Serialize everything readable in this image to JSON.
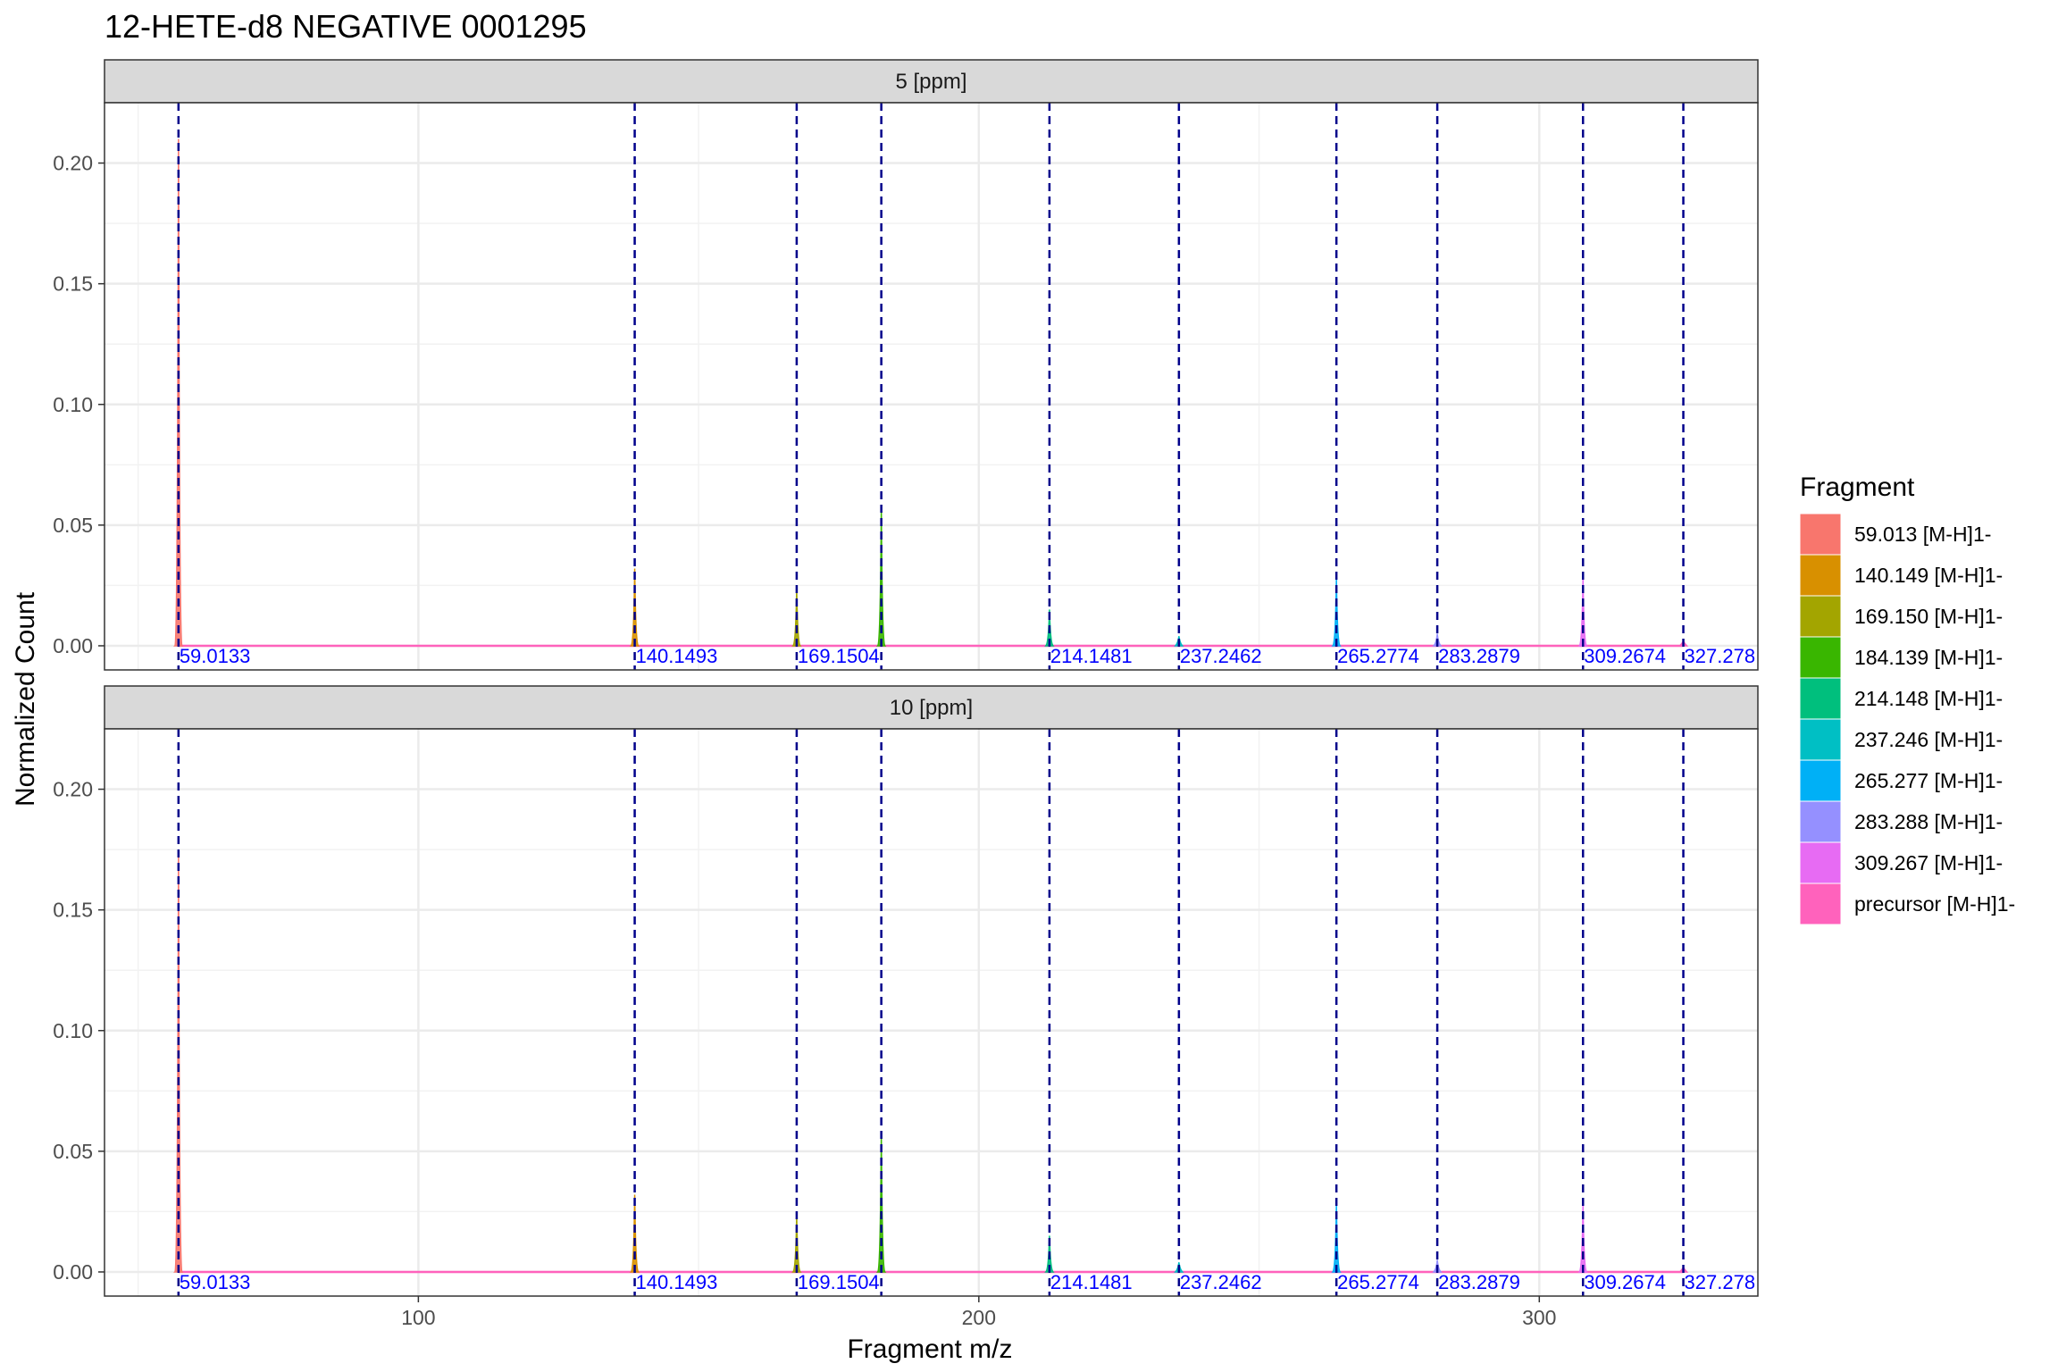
{
  "chart_data": {
    "type": "line",
    "title": "12-HETE-d8 NEGATIVE 0001295",
    "xlabel": "Fragment m/z",
    "ylabel": "Normalized Count",
    "xlim": [
      44,
      339
    ],
    "ylim": [
      -0.01,
      0.225
    ],
    "x_ticks": [
      100,
      200,
      300
    ],
    "x_tick_labels": [
      "100",
      "200",
      "300"
    ],
    "y_ticks": [
      0,
      0.05,
      0.1,
      0.15,
      0.2
    ],
    "y_tick_labels": [
      "0.00",
      "0.05",
      "0.10",
      "0.15",
      "0.20"
    ],
    "grid": true,
    "legend_title": "Fragment",
    "legend_position": "right",
    "panels": [
      {
        "strip": "5 [ppm]",
        "peaks": [
          {
            "fragment": "59.013 [M-H]1-",
            "mz": 57.2,
            "height": 0.21
          },
          {
            "fragment": "140.149 [M-H]1-",
            "mz": 138.6,
            "height": 0.032
          },
          {
            "fragment": "169.150 [M-H]1-",
            "mz": 167.5,
            "height": 0.024
          },
          {
            "fragment": "184.139 [M-H]1-",
            "mz": 182.6,
            "height": 0.057
          },
          {
            "fragment": "214.148 [M-H]1-",
            "mz": 212.6,
            "height": 0.015
          },
          {
            "fragment": "237.246 [M-H]1-",
            "mz": 235.7,
            "height": 0.004
          },
          {
            "fragment": "265.277 [M-H]1-",
            "mz": 263.8,
            "height": 0.028
          },
          {
            "fragment": "283.288 [M-H]1-",
            "mz": 281.8,
            "height": 0.005
          },
          {
            "fragment": "309.267 [M-H]1-",
            "mz": 307.8,
            "height": 0.028
          },
          {
            "fragment": "precursor [M-H]1-",
            "mz": 325.7,
            "height": 0.002
          }
        ]
      },
      {
        "strip": "10 [ppm]",
        "peaks": [
          {
            "fragment": "59.013 [M-H]1-",
            "mz": 57.2,
            "height": 0.175
          },
          {
            "fragment": "140.149 [M-H]1-",
            "mz": 138.6,
            "height": 0.032
          },
          {
            "fragment": "169.150 [M-H]1-",
            "mz": 167.5,
            "height": 0.024
          },
          {
            "fragment": "184.139 [M-H]1-",
            "mz": 182.6,
            "height": 0.057
          },
          {
            "fragment": "214.148 [M-H]1-",
            "mz": 212.6,
            "height": 0.015
          },
          {
            "fragment": "237.246 [M-H]1-",
            "mz": 235.7,
            "height": 0.004
          },
          {
            "fragment": "265.277 [M-H]1-",
            "mz": 263.8,
            "height": 0.028
          },
          {
            "fragment": "283.288 [M-H]1-",
            "mz": 281.8,
            "height": 0.005
          },
          {
            "fragment": "309.267 [M-H]1-",
            "mz": 307.8,
            "height": 0.028
          },
          {
            "fragment": "precursor [M-H]1-",
            "mz": 325.7,
            "height": 0.002
          }
        ]
      }
    ],
    "reference_lines": [
      {
        "mz": 57.2,
        "label": "59.0133"
      },
      {
        "mz": 138.6,
        "label": "140.1493"
      },
      {
        "mz": 167.5,
        "label": "169.1504"
      },
      {
        "mz": 182.6,
        "label": ""
      },
      {
        "mz": 212.6,
        "label": "214.1481"
      },
      {
        "mz": 235.7,
        "label": "237.2462"
      },
      {
        "mz": 263.8,
        "label": "265.2774"
      },
      {
        "mz": 281.8,
        "label": "283.2879"
      },
      {
        "mz": 307.8,
        "label": "309.2674"
      },
      {
        "mz": 325.7,
        "label": "327.278"
      }
    ],
    "legend": [
      {
        "label": "59.013 [M-H]1-",
        "color": "#F8766D"
      },
      {
        "label": "140.149 [M-H]1-",
        "color": "#D89000"
      },
      {
        "label": "169.150 [M-H]1-",
        "color": "#A3A500"
      },
      {
        "label": "184.139 [M-H]1-",
        "color": "#39B600"
      },
      {
        "label": "214.148 [M-H]1-",
        "color": "#00BF7D"
      },
      {
        "label": "237.246 [M-H]1-",
        "color": "#00BFC4"
      },
      {
        "label": "265.277 [M-H]1-",
        "color": "#00B0F6"
      },
      {
        "label": "283.288 [M-H]1-",
        "color": "#9590FF"
      },
      {
        "label": "309.267 [M-H]1-",
        "color": "#E76BF3"
      },
      {
        "label": "precursor [M-H]1-",
        "color": "#FF62BC"
      }
    ],
    "reference_line_color": "#00008B",
    "annotation_color": "#0000FF"
  }
}
